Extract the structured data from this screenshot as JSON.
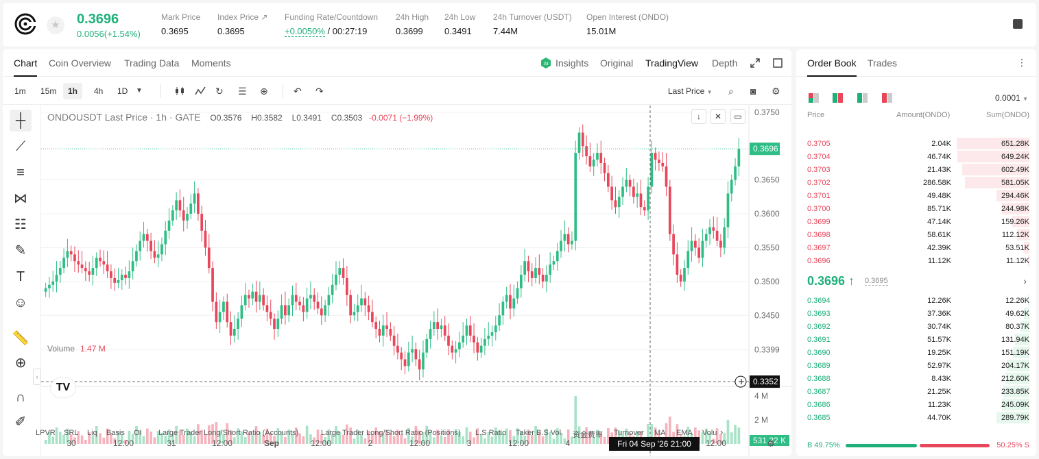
{
  "header": {
    "price": "0.3696",
    "change": "0.0056(+1.54%)",
    "stats": [
      {
        "label": "Mark Price",
        "value": "0.3695"
      },
      {
        "label": "Index Price ↗",
        "value": "0.3695"
      },
      {
        "label": "Funding Rate/Countdown",
        "value_green": "+0.0050%",
        "value": " / 00:27:19"
      },
      {
        "label": "24h High",
        "value": "0.3699"
      },
      {
        "label": "24h Low",
        "value": "0.3491"
      },
      {
        "label": "24h Turnover (USDT)",
        "value": "7.44M"
      },
      {
        "label": "Open Interest (ONDO)",
        "value": "15.01M"
      }
    ]
  },
  "tabs": {
    "chart": "Chart",
    "overview": "Coin Overview",
    "trading": "Trading Data",
    "moments": "Moments",
    "insights": "Insights",
    "original": "Original",
    "tradingview": "TradingView",
    "depth": "Depth"
  },
  "toolbar": {
    "timeframes": [
      "1m",
      "15m",
      "1h",
      "4h",
      "1D"
    ],
    "last_price": "Last Price"
  },
  "legend": {
    "symbol": "ONDOUSDT Last Price · 1h · GATE",
    "o": "O0.3576",
    "h": "H0.3582",
    "l": "L0.3491",
    "c": "C0.3503",
    "chg": "-0.0071 (−1.99%)"
  },
  "volume_legend": {
    "label": "Volume",
    "value": "1.47 M"
  },
  "chart_data": {
    "type": "candlestick",
    "title": "ONDOUSDT Last Price · 1h · GATE",
    "ylim": [
      0.3345,
      0.376
    ],
    "price_ticks": [
      "0.3750",
      "0.3650",
      "0.3600",
      "0.3550",
      "0.3500",
      "0.3450",
      "0.3399"
    ],
    "price_tick_values": [
      0.375,
      0.365,
      0.36,
      0.355,
      0.35,
      0.345,
      0.3399
    ],
    "current_price_label": "0.3696",
    "current_price": 0.3696,
    "crosshair_price_label": "0.3352",
    "crosshair_price": 0.3352,
    "volume_ticks": [
      "4 M",
      "2 M"
    ],
    "volume_tick_values": [
      4000000,
      2000000
    ],
    "volume_label": "531.22 K",
    "x_ticks": [
      "30",
      "12:00",
      "31",
      "12:00",
      "Sep",
      "12:00",
      "2",
      "12:00",
      "3",
      "12:00",
      "4",
      "12:00"
    ],
    "crosshair_time": "Fri 04 Sep '26   21:00",
    "closes": [
      0.349,
      0.3495,
      0.35,
      0.351,
      0.352,
      0.3535,
      0.3545,
      0.354,
      0.353,
      0.3525,
      0.352,
      0.3515,
      0.351,
      0.352,
      0.3535,
      0.353,
      0.3525,
      0.3515,
      0.3505,
      0.3498,
      0.3502,
      0.351,
      0.3505,
      0.3515,
      0.353,
      0.3545,
      0.356,
      0.357,
      0.356,
      0.3545,
      0.3535,
      0.354,
      0.3555,
      0.3575,
      0.359,
      0.3605,
      0.362,
      0.3605,
      0.359,
      0.36,
      0.3615,
      0.363,
      0.36,
      0.3575,
      0.355,
      0.352,
      0.347,
      0.344,
      0.3455,
      0.347,
      0.344,
      0.342,
      0.343,
      0.3445,
      0.3465,
      0.348,
      0.3475,
      0.3485,
      0.347,
      0.348,
      0.3465,
      0.3455,
      0.3445,
      0.343,
      0.3445,
      0.3465,
      0.345,
      0.3465,
      0.348,
      0.347,
      0.3465,
      0.3455,
      0.3475,
      0.348,
      0.347,
      0.346,
      0.345,
      0.3465,
      0.348,
      0.3495,
      0.351,
      0.352,
      0.3505,
      0.348,
      0.345,
      0.3455,
      0.3465,
      0.3475,
      0.3465,
      0.3455,
      0.344,
      0.343,
      0.342,
      0.3435,
      0.343,
      0.342,
      0.3405,
      0.3395,
      0.3385,
      0.3375,
      0.3395,
      0.34,
      0.3385,
      0.337,
      0.3395,
      0.3415,
      0.343,
      0.344,
      0.343,
      0.3435,
      0.342,
      0.3405,
      0.3395,
      0.34,
      0.341,
      0.342,
      0.3435,
      0.342,
      0.341,
      0.3395,
      0.3405,
      0.3415,
      0.342,
      0.3425,
      0.3435,
      0.345,
      0.347,
      0.348,
      0.346,
      0.3475,
      0.349,
      0.351,
      0.353,
      0.3515,
      0.3505,
      0.352,
      0.351,
      0.35,
      0.351,
      0.3525,
      0.353,
      0.3545,
      0.356,
      0.357,
      0.3555,
      0.356,
      0.369,
      0.372,
      0.37,
      0.3685,
      0.367,
      0.368,
      0.369,
      0.3675,
      0.366,
      0.364,
      0.362,
      0.361,
      0.3625,
      0.364,
      0.365,
      0.364,
      0.3625,
      0.363,
      0.361,
      0.3605,
      0.364,
      0.369,
      0.368,
      0.3675,
      0.367,
      0.364,
      0.357,
      0.354,
      0.351,
      0.35,
      0.352,
      0.3545,
      0.356,
      0.355,
      0.3535,
      0.356,
      0.357,
      0.358,
      0.3575,
      0.356,
      0.355,
      0.358,
      0.363,
      0.365,
      0.367,
      0.3696
    ]
  },
  "tools_bottom": {
    "indicators": [
      "LPVR",
      "SRL",
      "Liq",
      "Basis",
      "OI",
      "Large Trader Long/Short Ratio (Accounts)",
      "Large Trader Long/Short Ratio (Positions)",
      "L.S Ratio",
      "Taker B.S Vol.",
      "资金费率",
      "Turnover",
      "MA",
      "EMA",
      "Volu"
    ]
  },
  "orderbook": {
    "tabs": {
      "book": "Order Book",
      "trades": "Trades"
    },
    "precision": "0.0001",
    "headers": {
      "price": "Price",
      "amount": "Amount(ONDO)",
      "sum": "Sum(ONDO)"
    },
    "asks": [
      {
        "price": "0.3705",
        "amount": "2.04K",
        "sum": "651.28K",
        "depth": 1.0
      },
      {
        "price": "0.3704",
        "amount": "46.74K",
        "sum": "649.24K",
        "depth": 0.99
      },
      {
        "price": "0.3703",
        "amount": "21.43K",
        "sum": "602.49K",
        "depth": 0.92
      },
      {
        "price": "0.3702",
        "amount": "286.58K",
        "sum": "581.05K",
        "depth": 0.89
      },
      {
        "price": "0.3701",
        "amount": "49.48K",
        "sum": "294.46K",
        "depth": 0.45
      },
      {
        "price": "0.3700",
        "amount": "85.71K",
        "sum": "244.98K",
        "depth": 0.38
      },
      {
        "price": "0.3699",
        "amount": "47.14K",
        "sum": "159.26K",
        "depth": 0.24
      },
      {
        "price": "0.3698",
        "amount": "58.61K",
        "sum": "112.12K",
        "depth": 0.17
      },
      {
        "price": "0.3697",
        "amount": "42.39K",
        "sum": "53.51K",
        "depth": 0.08
      },
      {
        "price": "0.3696",
        "amount": "11.12K",
        "sum": "11.12K",
        "depth": 0.02
      }
    ],
    "mid": {
      "price": "0.3696 ↑",
      "mark": "0.3695"
    },
    "bids": [
      {
        "price": "0.3694",
        "amount": "12.26K",
        "sum": "12.26K",
        "depth": 0.02
      },
      {
        "price": "0.3693",
        "amount": "37.36K",
        "sum": "49.62K",
        "depth": 0.08
      },
      {
        "price": "0.3692",
        "amount": "30.74K",
        "sum": "80.37K",
        "depth": 0.12
      },
      {
        "price": "0.3691",
        "amount": "51.57K",
        "sum": "131.94K",
        "depth": 0.2
      },
      {
        "price": "0.3690",
        "amount": "19.25K",
        "sum": "151.19K",
        "depth": 0.23
      },
      {
        "price": "0.3689",
        "amount": "52.97K",
        "sum": "204.17K",
        "depth": 0.31
      },
      {
        "price": "0.3688",
        "amount": "8.43K",
        "sum": "212.60K",
        "depth": 0.33
      },
      {
        "price": "0.3687",
        "amount": "21.25K",
        "sum": "233.85K",
        "depth": 0.36
      },
      {
        "price": "0.3686",
        "amount": "11.23K",
        "sum": "245.09K",
        "depth": 0.38
      },
      {
        "price": "0.3685",
        "amount": "44.70K",
        "sum": "289.79K",
        "depth": 0.45
      }
    ],
    "buy_ratio": "B 49.75%",
    "sell_ratio": "50.25% S",
    "buy_fraction": 0.4975
  }
}
